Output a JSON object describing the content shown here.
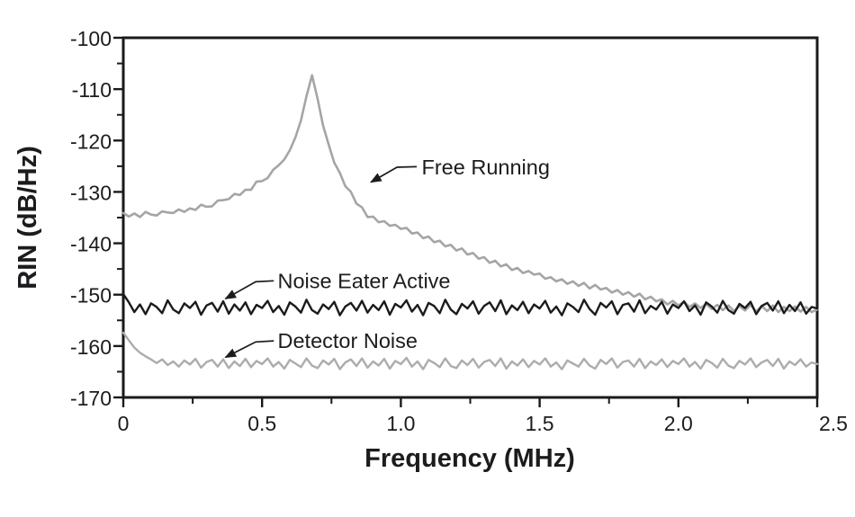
{
  "chart_data": {
    "type": "line",
    "title": "",
    "xlabel": "Frequency (MHz)",
    "ylabel": "RIN (dB/Hz)",
    "xlim": [
      0,
      2.5
    ],
    "ylim": [
      -170,
      -100
    ],
    "grid": false,
    "legend_position": "inline-annotations",
    "axis_color": "#1a1a1a",
    "text_color": "#1c1c1e",
    "x_ticks": [
      0,
      0.5,
      1.0,
      1.5,
      2.0,
      2.5
    ],
    "x_tick_labels": [
      "0",
      "0.5",
      "1.0",
      "1.5",
      "2.0",
      "2.5"
    ],
    "x_minor_ticks": [
      0.25,
      0.75,
      1.25,
      1.75,
      2.25
    ],
    "y_ticks": [
      -100,
      -110,
      -120,
      -130,
      -140,
      -150,
      -160,
      -170
    ],
    "y_tick_labels": [
      "-100",
      "-110",
      "-120",
      "-130",
      "-140",
      "-150",
      "-160",
      "-170"
    ],
    "y_minor_ticks": [
      -105,
      -115,
      -125,
      -135,
      -145,
      -155,
      -165
    ],
    "series": [
      {
        "name": "Free Running",
        "color": "#a5a5a5",
        "line_width": 2.6,
        "z_order": 1,
        "peak": {
          "f": 0.68,
          "v": -107.3
        },
        "x0": 0,
        "dx": 0.02,
        "values": [
          -134.1,
          -134.8,
          -134.2,
          -134.9,
          -133.9,
          -134.4,
          -134.6,
          -133.8,
          -134.0,
          -134.1,
          -133.4,
          -133.9,
          -133.2,
          -133.5,
          -132.5,
          -132.9,
          -132.8,
          -131.7,
          -131.6,
          -131.4,
          -130.4,
          -130.6,
          -129.6,
          -129.6,
          -128.0,
          -127.9,
          -127.3,
          -125.7,
          -124.8,
          -123.7,
          -121.9,
          -119.4,
          -116.1,
          -111.4,
          -107.3,
          -111.9,
          -117.1,
          -120.8,
          -124.3,
          -126.3,
          -128.9,
          -130.0,
          -132.3,
          -133.0,
          -134.9,
          -134.8,
          -135.9,
          -135.7,
          -136.6,
          -136.4,
          -137.2,
          -137.0,
          -138.1,
          -137.9,
          -139.0,
          -138.7,
          -139.8,
          -139.5,
          -140.6,
          -140.3,
          -141.4,
          -141.0,
          -142.2,
          -141.9,
          -143.0,
          -142.7,
          -143.8,
          -143.4,
          -144.5,
          -144.1,
          -145.2,
          -144.8,
          -145.8,
          -145.4,
          -146.1,
          -145.9,
          -146.9,
          -146.6,
          -147.4,
          -147.0,
          -147.9,
          -147.4,
          -148.3,
          -147.7,
          -148.8,
          -148.1,
          -149.0,
          -148.7,
          -149.6,
          -149.1,
          -150.0,
          -149.5,
          -150.4,
          -149.8,
          -150.9,
          -150.4,
          -151.3,
          -150.9,
          -151.9,
          -151.2,
          -152.1,
          -151.4,
          -152.4,
          -151.7,
          -152.6,
          -151.8,
          -152.8,
          -152.0,
          -153.0,
          -152.1,
          -153.2,
          -152.2,
          -153.1,
          -152.0,
          -153.3,
          -152.2,
          -153.2,
          -152.1,
          -153.4,
          -152.4,
          -153.2,
          -152.3,
          -153.3,
          -152.4,
          -153.4,
          -152.9
        ]
      },
      {
        "name": "Noise Eater Active",
        "color": "#1b1b1b",
        "line_width": 2.4,
        "z_order": 3,
        "mean_level": -152.5,
        "x0": 0,
        "dx": 0.02,
        "values": [
          -149.9,
          -151.5,
          -153.4,
          -151.9,
          -153.8,
          -151.7,
          -152.4,
          -153.6,
          -151.1,
          -152.9,
          -153.6,
          -151.7,
          -152.6,
          -151.4,
          -153.9,
          -152.1,
          -151.6,
          -153.3,
          -151.3,
          -153.7,
          -151.9,
          -153.1,
          -151.5,
          -153.8,
          -152.0,
          -152.6,
          -151.2,
          -153.4,
          -152.2,
          -153.9,
          -151.5,
          -152.3,
          -153.5,
          -151.0,
          -153.0,
          -153.7,
          -151.9,
          -152.8,
          -151.4,
          -154.0,
          -152.3,
          -151.6,
          -153.1,
          -151.2,
          -153.5,
          -152.0,
          -153.0,
          -151.3,
          -153.9,
          -151.8,
          -152.5,
          -151.1,
          -153.3,
          -152.0,
          -154.0,
          -151.6,
          -152.2,
          -153.6,
          -151.0,
          -152.9,
          -153.8,
          -151.8,
          -152.7,
          -151.3,
          -153.7,
          -152.2,
          -151.5,
          -153.2,
          -151.1,
          -153.8,
          -152.1,
          -153.0,
          -151.4,
          -153.6,
          -151.9,
          -152.7,
          -151.2,
          -153.5,
          -152.3,
          -154.0,
          -151.7,
          -152.4,
          -153.4,
          -151.0,
          -152.8,
          -153.9,
          -151.6,
          -152.5,
          -151.3,
          -153.8,
          -152.0,
          -151.7,
          -153.3,
          -151.1,
          -153.6,
          -152.2,
          -152.9,
          -151.4,
          -153.7,
          -151.9,
          -152.6,
          -151.3,
          -153.2,
          -152.1,
          -153.9,
          -151.5,
          -152.3,
          -153.5,
          -151.2,
          -153.0,
          -153.7,
          -151.8,
          -152.6,
          -151.4,
          -153.8,
          -152.2,
          -151.6,
          -153.1,
          -151.3,
          -153.6,
          -152.0,
          -153.2,
          -151.5,
          -153.7,
          -152.4,
          -152.7
        ]
      },
      {
        "name": "Detector Noise",
        "color": "#acacac",
        "line_width": 2.4,
        "z_order": 2,
        "mean_level": -163.3,
        "x0": 0,
        "dx": 0.02,
        "values": [
          -157.4,
          -158.9,
          -160.3,
          -161.3,
          -162.0,
          -162.6,
          -163.3,
          -162.6,
          -163.7,
          -163.0,
          -164.0,
          -162.8,
          -163.6,
          -162.5,
          -164.2,
          -163.1,
          -162.7,
          -164.0,
          -162.6,
          -164.3,
          -163.0,
          -163.9,
          -162.5,
          -164.1,
          -162.9,
          -163.5,
          -162.4,
          -164.0,
          -163.1,
          -164.4,
          -162.7,
          -163.4,
          -164.1,
          -162.4,
          -163.8,
          -164.3,
          -162.8,
          -163.6,
          -162.5,
          -164.5,
          -163.2,
          -162.6,
          -163.9,
          -162.4,
          -164.2,
          -163.0,
          -163.8,
          -162.5,
          -164.4,
          -162.9,
          -163.5,
          -162.3,
          -164.0,
          -163.0,
          -164.5,
          -162.7,
          -163.3,
          -164.1,
          -162.4,
          -163.9,
          -164.3,
          -162.8,
          -163.7,
          -162.5,
          -164.2,
          -163.1,
          -162.7,
          -163.9,
          -162.4,
          -164.4,
          -163.0,
          -163.8,
          -162.6,
          -164.1,
          -162.9,
          -163.6,
          -162.4,
          -164.0,
          -163.2,
          -164.5,
          -162.8,
          -163.4,
          -164.0,
          -162.5,
          -163.8,
          -164.4,
          -162.7,
          -163.5,
          -162.4,
          -164.2,
          -163.1,
          -162.8,
          -164.0,
          -162.5,
          -164.3,
          -163.0,
          -163.7,
          -162.6,
          -164.1,
          -162.9,
          -163.5,
          -162.4,
          -164.0,
          -163.1,
          -164.4,
          -162.7,
          -163.3,
          -164.2,
          -162.5,
          -163.8,
          -164.3,
          -162.9,
          -163.6,
          -162.4,
          -164.1,
          -163.2,
          -162.7,
          -163.9,
          -162.5,
          -164.4,
          -163.0,
          -163.7,
          -162.6,
          -164.0,
          -163.2,
          -163.5
        ]
      }
    ],
    "annotations": [
      {
        "text": "Free Running",
        "text_at": {
          "f": 1.075,
          "v": -125.2
        },
        "arrow": [
          {
            "f": 1.057,
            "v": -125.1
          },
          {
            "f": 0.986,
            "v": -125.2
          },
          {
            "f": 0.892,
            "v": -128.1
          }
        ]
      },
      {
        "text": "Noise Eater Active",
        "text_at": {
          "f": 0.556,
          "v": -147.3
        },
        "arrow": [
          {
            "f": 0.542,
            "v": -147.3
          },
          {
            "f": 0.477,
            "v": -147.5
          },
          {
            "f": 0.368,
            "v": -150.8
          }
        ]
      },
      {
        "text": "Detector Noise",
        "text_at": {
          "f": 0.556,
          "v": -159.0
        },
        "arrow": [
          {
            "f": 0.542,
            "v": -159.0
          },
          {
            "f": 0.477,
            "v": -159.2
          },
          {
            "f": 0.368,
            "v": -162.2
          }
        ]
      }
    ]
  }
}
